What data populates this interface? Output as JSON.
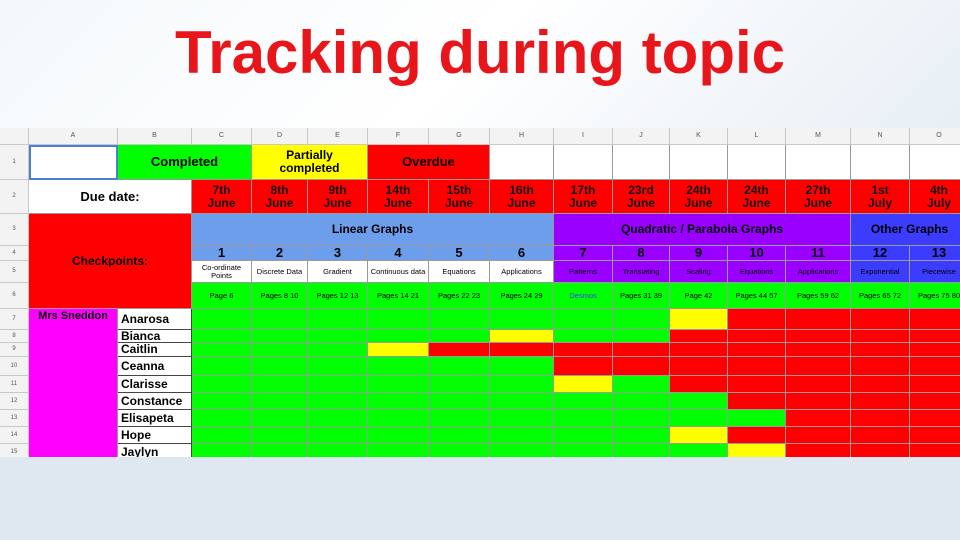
{
  "title": "Tracking during topic",
  "colors": {
    "green": "#00ff00",
    "red": "#ff0000",
    "yellow": "#ffff00",
    "purple": "#9900ff",
    "blue": "#6d9eeb",
    "darkblue": "#3c3cff",
    "magenta": "#ff00ff",
    "title": "#e8161b"
  },
  "col_headers": [
    "A",
    "B",
    "C",
    "D",
    "E",
    "F",
    "G",
    "H",
    "I",
    "J",
    "K",
    "L",
    "M",
    "N",
    "O"
  ],
  "row_headers": [
    "1",
    "2",
    "3",
    "4",
    "5",
    "6",
    "7",
    "8",
    "9",
    "10",
    "11",
    "12",
    "13",
    "14",
    "15"
  ],
  "legend": {
    "completed": "Completed",
    "partial": "Partially completed",
    "overdue": "Overdue"
  },
  "due_label": "Due date:",
  "checkpoints_label": "Checkpoints:",
  "teacher": "Mrs Sneddon",
  "dates": [
    [
      "7th",
      "June"
    ],
    [
      "8th",
      "June"
    ],
    [
      "9th",
      "June"
    ],
    [
      "14th",
      "June"
    ],
    [
      "15th",
      "June"
    ],
    [
      "16th",
      "June"
    ],
    [
      "17th",
      "June"
    ],
    [
      "23rd",
      "June"
    ],
    [
      "24th",
      "June"
    ],
    [
      "24th",
      "June"
    ],
    [
      "27th",
      "June"
    ],
    [
      "1st",
      "July"
    ],
    [
      "4th",
      "July"
    ]
  ],
  "groups": {
    "linear": "Linear Graphs",
    "quadratic": "Quadratic / Parabola Graphs",
    "other": "Other Graphs"
  },
  "numbers": [
    "1",
    "2",
    "3",
    "4",
    "5",
    "6",
    "7",
    "8",
    "9",
    "10",
    "11",
    "12",
    "13"
  ],
  "topics": [
    "Co-ordinate Points",
    "Discrete Data",
    "Gradient",
    "Continuous data",
    "Equations",
    "Applications",
    "Patterns",
    "Translating",
    "Scaling",
    "Equations",
    "Applications",
    "Exponential",
    "Piecewise"
  ],
  "pages": [
    "Page 6",
    "Pages 8 10",
    "Pages 12 13",
    "Pages 14 21",
    "Pages 22 23",
    "Pages 24 29",
    "Desmos",
    "Pages 31 39",
    "Page 42",
    "Pages 44 57",
    "Pages 59 62",
    "Pages 65 72",
    "Pages 75 80"
  ],
  "students": [
    "Anarosa",
    "Bianca",
    "Caitlin",
    "Ceanna",
    "Clarisse",
    "Constance",
    "Elisapeta",
    "Hope",
    "Jaylyn"
  ],
  "status": [
    "GGGGGGGGYRRRR",
    "GGGGGYGGRRRRR",
    "GGGYRRRRRRRRR",
    "GGGGGGRRRRRRR",
    "GGGGGGYGRRRRR",
    "GGGGGGGGGRRRR",
    "GGGGGGGGGGRRR",
    "GGGGGGGGYRRRR",
    "GGGGGGGGGYRRR"
  ]
}
